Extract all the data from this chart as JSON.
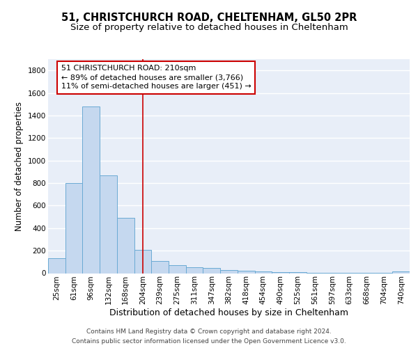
{
  "title1": "51, CHRISTCHURCH ROAD, CHELTENHAM, GL50 2PR",
  "title2": "Size of property relative to detached houses in Cheltenham",
  "xlabel": "Distribution of detached houses by size in Cheltenham",
  "ylabel": "Number of detached properties",
  "categories": [
    "25sqm",
    "61sqm",
    "96sqm",
    "132sqm",
    "168sqm",
    "204sqm",
    "239sqm",
    "275sqm",
    "311sqm",
    "347sqm",
    "382sqm",
    "418sqm",
    "454sqm",
    "490sqm",
    "525sqm",
    "561sqm",
    "597sqm",
    "633sqm",
    "668sqm",
    "704sqm",
    "740sqm"
  ],
  "values": [
    130,
    800,
    1480,
    870,
    490,
    210,
    110,
    70,
    55,
    45,
    30,
    20,
    15,
    10,
    8,
    6,
    5,
    4,
    3,
    2,
    18
  ],
  "bar_color": "#c5d8ef",
  "bar_edge_color": "#6aaad4",
  "bg_color": "#e8eef8",
  "grid_color": "#ffffff",
  "red_line_x": 5.0,
  "annotation_line1": "51 CHRISTCHURCH ROAD: 210sqm",
  "annotation_line2": "← 89% of detached houses are smaller (3,766)",
  "annotation_line3": "11% of semi-detached houses are larger (451) →",
  "annotation_border_color": "#cc0000",
  "annotation_bg_color": "#ffffff",
  "ylim": [
    0,
    1900
  ],
  "yticks": [
    0,
    200,
    400,
    600,
    800,
    1000,
    1200,
    1400,
    1600,
    1800
  ],
  "footer_line1": "Contains HM Land Registry data © Crown copyright and database right 2024.",
  "footer_line2": "Contains public sector information licensed under the Open Government Licence v3.0.",
  "title1_fontsize": 10.5,
  "title2_fontsize": 9.5,
  "xlabel_fontsize": 9,
  "ylabel_fontsize": 8.5,
  "tick_fontsize": 7.5,
  "annotation_fontsize": 8,
  "footer_fontsize": 6.5
}
